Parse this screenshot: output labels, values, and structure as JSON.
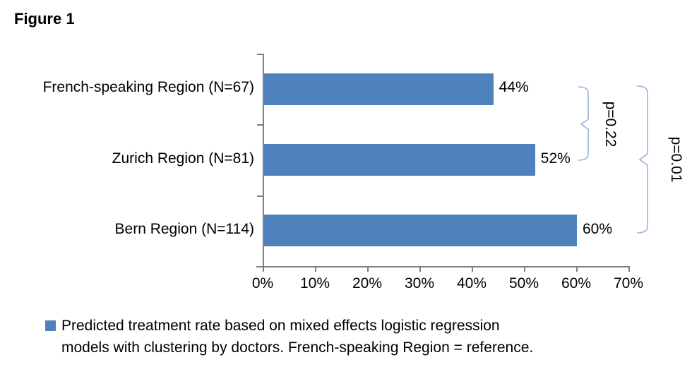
{
  "figure": {
    "title": "Figure 1"
  },
  "chart_data": {
    "type": "bar",
    "orientation": "horizontal",
    "title": "Figure 1",
    "categories": [
      "French-speaking Region (N=67)",
      "Zurich Region (N=81)",
      "Bern Region (N=114)"
    ],
    "values": [
      44,
      52,
      60
    ],
    "value_labels": [
      "44%",
      "52%",
      "60%"
    ],
    "xlabel": "",
    "ylabel": "",
    "xlim": [
      0,
      70
    ],
    "x_ticks": [
      "0%",
      "10%",
      "20%",
      "30%",
      "40%",
      "50%",
      "60%",
      "70%"
    ],
    "grid": false,
    "legend_position": "bottom",
    "series_name": "Predicted treatment rate based on mixed effects logistic regression models with clustering by doctors. French-speaking Region = reference.",
    "annotations": [
      {
        "label": "p=0.22",
        "from": "French-speaking Region (N=67)",
        "to": "Zurich Region (N=81)"
      },
      {
        "label": "p=0.01",
        "from": "French-speaking Region (N=67)",
        "to": "Bern Region (N=114)"
      }
    ],
    "colors": {
      "bar": "#4F81BD",
      "brace": "#95B3D7",
      "axis": "#7F7F7F",
      "text": "#000000"
    }
  },
  "legend": {
    "lines": [
      "Predicted treatment rate based on mixed effects logistic regression",
      "models with clustering by doctors. French-speaking Region = reference."
    ]
  }
}
